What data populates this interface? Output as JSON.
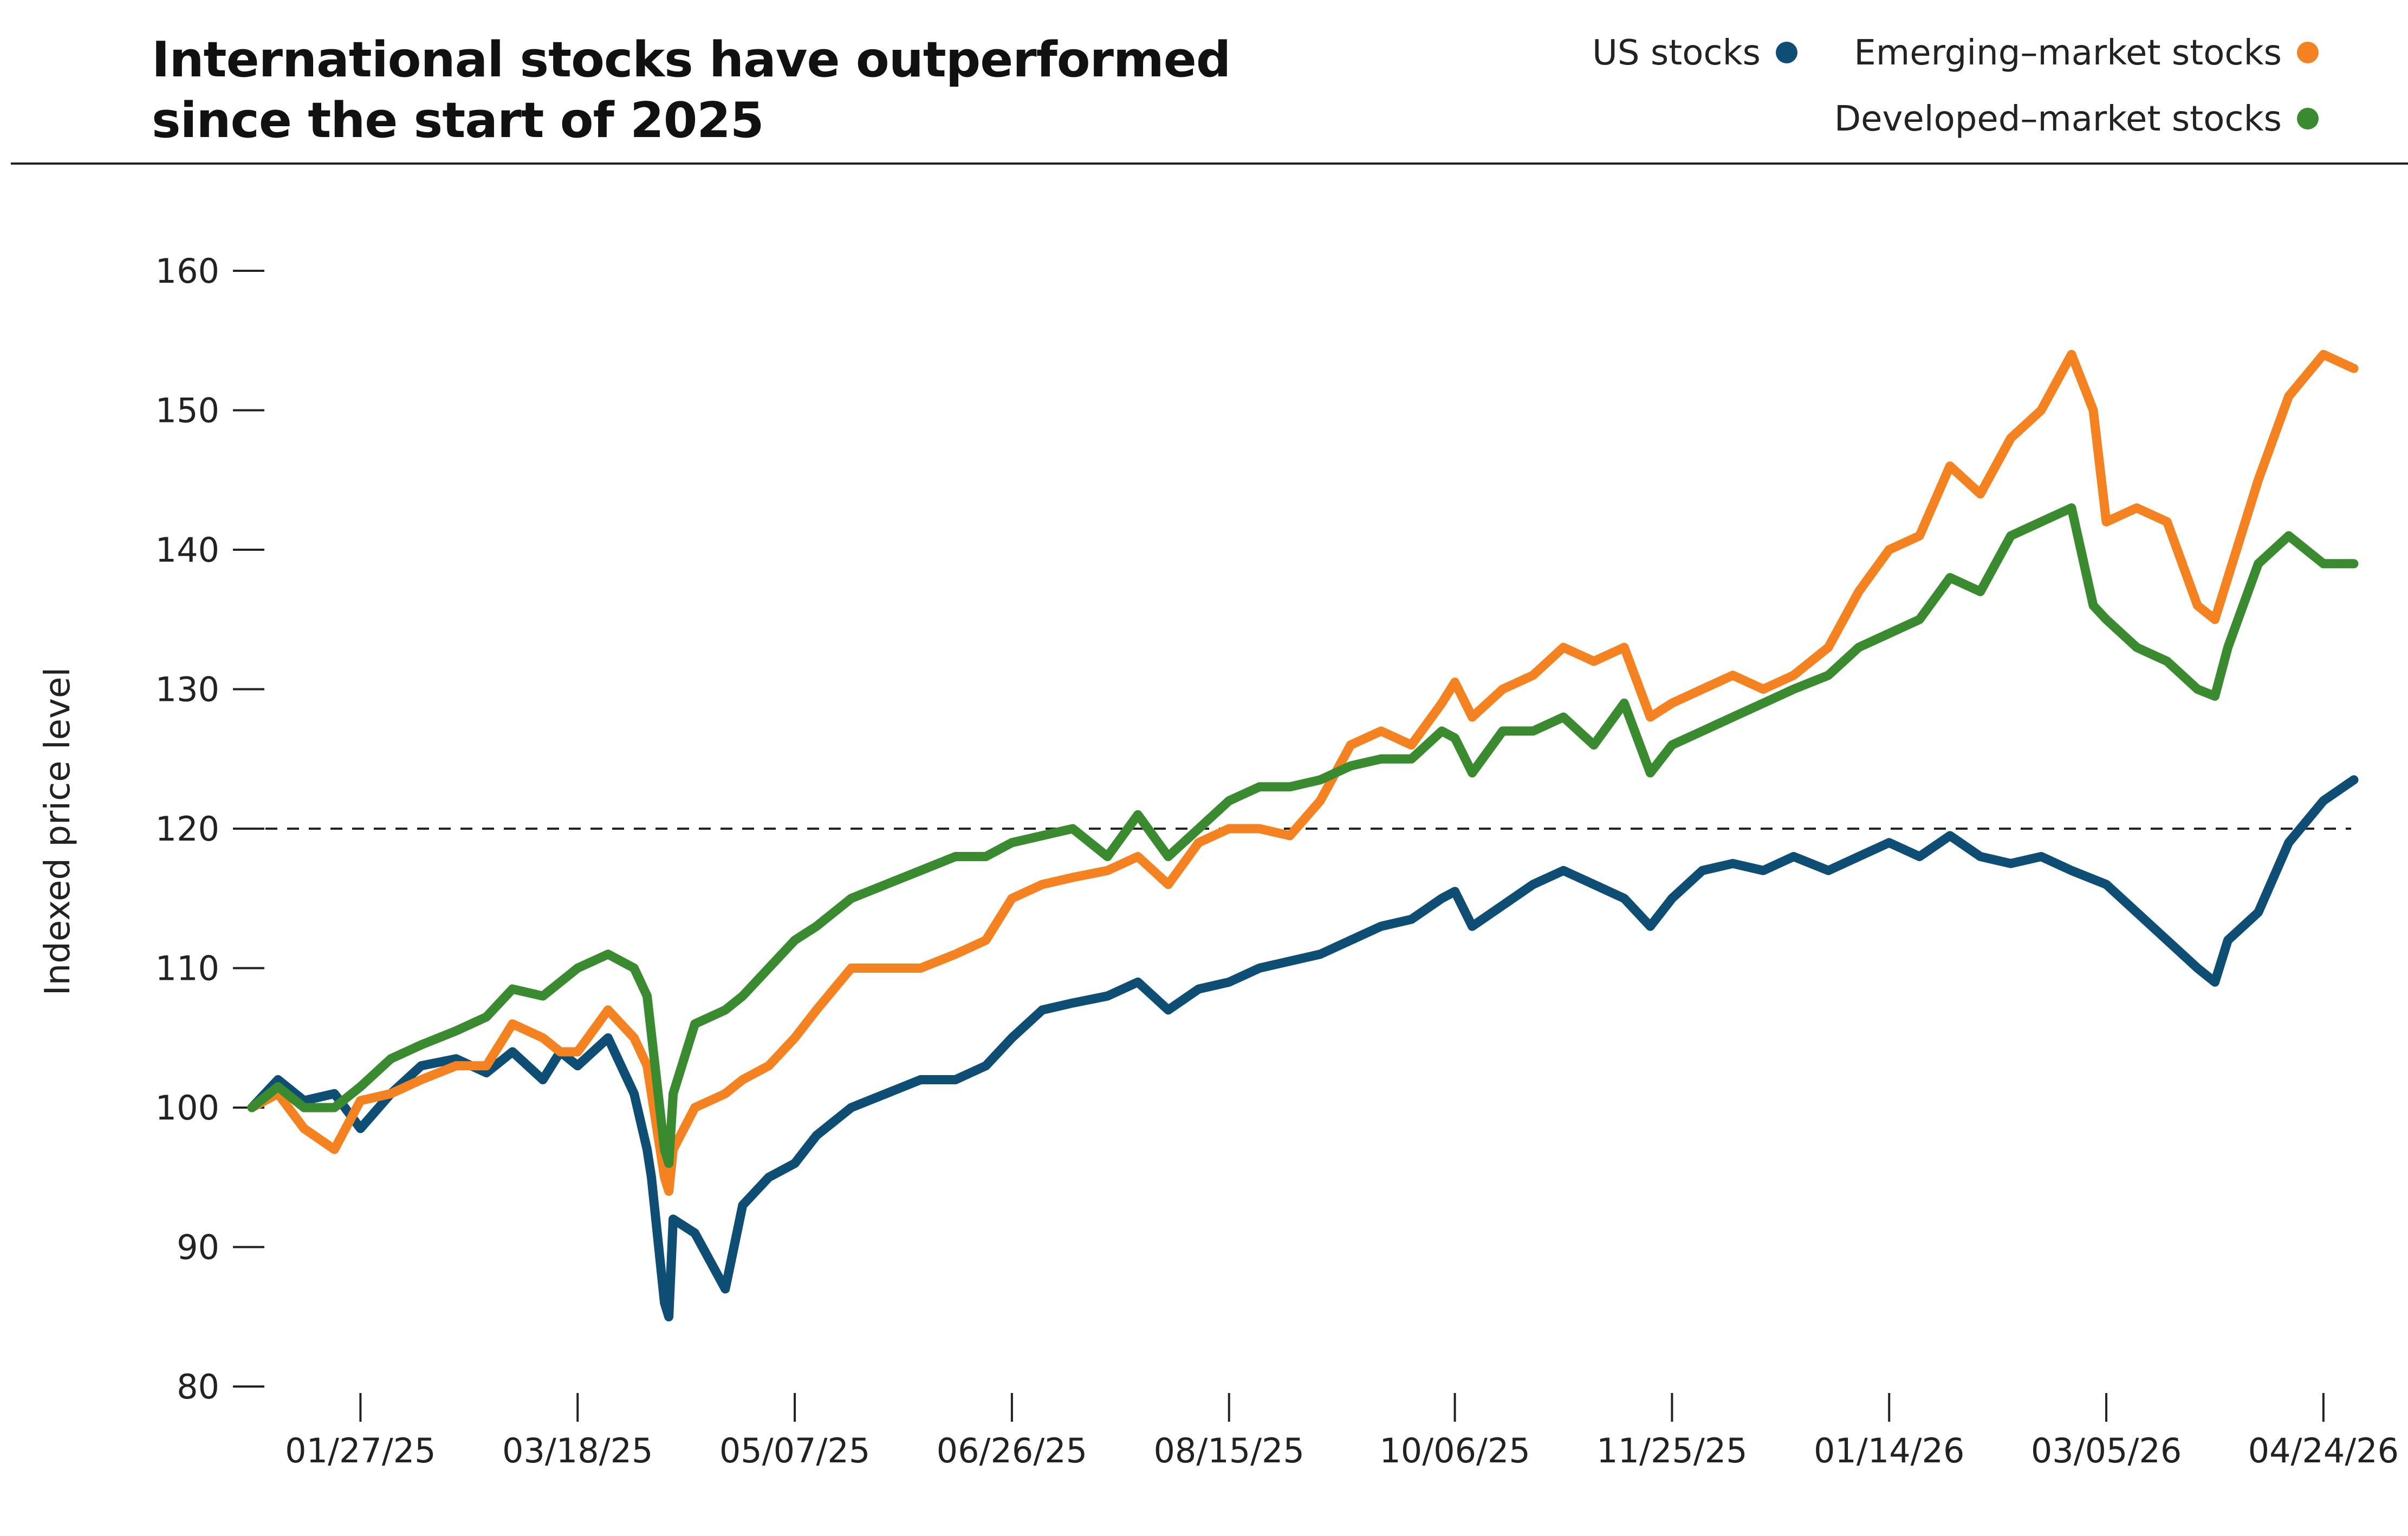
{
  "chart_data": {
    "type": "line",
    "title_lines": [
      "International stocks have outperformed",
      "since the start of 2025"
    ],
    "ylabel": "Indexed price level",
    "xlabel": "",
    "ylim": [
      80,
      160
    ],
    "yticks": [
      80,
      90,
      100,
      110,
      120,
      130,
      140,
      150,
      160
    ],
    "x_start": "01/02/25",
    "x_end": "05/01/26",
    "xticks": [
      "01/27/25",
      "03/18/25",
      "05/07/25",
      "06/26/25",
      "08/15/25",
      "10/06/25",
      "11/25/25",
      "01/14/26",
      "03/05/26",
      "04/24/26"
    ],
    "reference_line": {
      "y": 120,
      "style": "dashed"
    },
    "legend_position": "top-right",
    "series": [
      {
        "name": "US stocks",
        "color": "#0e4e74",
        "points": [
          [
            "01/02/25",
            100
          ],
          [
            "01/08/25",
            102
          ],
          [
            "01/14/25",
            100.5
          ],
          [
            "01/21/25",
            101
          ],
          [
            "01/27/25",
            98.5
          ],
          [
            "02/03/25",
            101
          ],
          [
            "02/10/25",
            103
          ],
          [
            "02/18/25",
            103.5
          ],
          [
            "02/25/25",
            102.5
          ],
          [
            "03/03/25",
            104
          ],
          [
            "03/10/25",
            102
          ],
          [
            "03/14/25",
            104
          ],
          [
            "03/18/25",
            103
          ],
          [
            "03/25/25",
            105
          ],
          [
            "03/31/25",
            101
          ],
          [
            "04/03/25",
            97
          ],
          [
            "04/04/25",
            95
          ],
          [
            "04/07/25",
            86
          ],
          [
            "04/08/25",
            85
          ],
          [
            "04/09/25",
            92
          ],
          [
            "04/14/25",
            91
          ],
          [
            "04/21/25",
            87
          ],
          [
            "04/25/25",
            93
          ],
          [
            "05/01/25",
            95
          ],
          [
            "05/07/25",
            96
          ],
          [
            "05/12/25",
            98
          ],
          [
            "05/20/25",
            100
          ],
          [
            "05/28/25",
            101
          ],
          [
            "06/05/25",
            102
          ],
          [
            "06/13/25",
            102
          ],
          [
            "06/20/25",
            103
          ],
          [
            "06/26/25",
            105
          ],
          [
            "07/03/25",
            107
          ],
          [
            "07/10/25",
            107.5
          ],
          [
            "07/18/25",
            108
          ],
          [
            "07/25/25",
            109
          ],
          [
            "08/01/25",
            107
          ],
          [
            "08/08/25",
            108.5
          ],
          [
            "08/15/25",
            109
          ],
          [
            "08/22/25",
            110
          ],
          [
            "08/29/25",
            110.5
          ],
          [
            "09/05/25",
            111
          ],
          [
            "09/12/25",
            112
          ],
          [
            "09/19/25",
            113
          ],
          [
            "09/26/25",
            113.5
          ],
          [
            "10/03/25",
            115
          ],
          [
            "10/06/25",
            115.5
          ],
          [
            "10/10/25",
            113
          ],
          [
            "10/17/25",
            114.5
          ],
          [
            "10/24/25",
            116
          ],
          [
            "10/31/25",
            117
          ],
          [
            "11/07/25",
            116
          ],
          [
            "11/14/25",
            115
          ],
          [
            "11/20/25",
            113
          ],
          [
            "11/25/25",
            115
          ],
          [
            "12/02/25",
            117
          ],
          [
            "12/09/25",
            117.5
          ],
          [
            "12/16/25",
            117
          ],
          [
            "12/23/25",
            118
          ],
          [
            "12/31/25",
            117
          ],
          [
            "01/07/26",
            118
          ],
          [
            "01/14/26",
            119
          ],
          [
            "01/21/26",
            118
          ],
          [
            "01/28/26",
            119.5
          ],
          [
            "02/04/26",
            118
          ],
          [
            "02/11/26",
            117.5
          ],
          [
            "02/18/26",
            118
          ],
          [
            "02/25/26",
            117
          ],
          [
            "03/05/26",
            116
          ],
          [
            "03/12/26",
            114
          ],
          [
            "03/19/26",
            112
          ],
          [
            "03/26/26",
            110
          ],
          [
            "03/30/26",
            109
          ],
          [
            "04/02/26",
            112
          ],
          [
            "04/09/26",
            114
          ],
          [
            "04/16/26",
            119
          ],
          [
            "04/24/26",
            122
          ],
          [
            "05/01/26",
            123.5
          ]
        ]
      },
      {
        "name": "Emerging–market stocks",
        "color": "#f58220",
        "points": [
          [
            "01/02/25",
            100
          ],
          [
            "01/08/25",
            101
          ],
          [
            "01/14/25",
            98.5
          ],
          [
            "01/21/25",
            97
          ],
          [
            "01/27/25",
            100.5
          ],
          [
            "02/03/25",
            101
          ],
          [
            "02/10/25",
            102
          ],
          [
            "02/18/25",
            103
          ],
          [
            "02/25/25",
            103
          ],
          [
            "03/03/25",
            106
          ],
          [
            "03/10/25",
            105
          ],
          [
            "03/14/25",
            104
          ],
          [
            "03/18/25",
            104
          ],
          [
            "03/25/25",
            107
          ],
          [
            "03/31/25",
            105
          ],
          [
            "04/03/25",
            103
          ],
          [
            "04/07/25",
            95
          ],
          [
            "04/08/25",
            94
          ],
          [
            "04/09/25",
            97
          ],
          [
            "04/14/25",
            100
          ],
          [
            "04/21/25",
            101
          ],
          [
            "04/25/25",
            102
          ],
          [
            "05/01/25",
            103
          ],
          [
            "05/07/25",
            105
          ],
          [
            "05/12/25",
            107
          ],
          [
            "05/20/25",
            110
          ],
          [
            "05/28/25",
            110
          ],
          [
            "06/05/25",
            110
          ],
          [
            "06/13/25",
            111
          ],
          [
            "06/20/25",
            112
          ],
          [
            "06/26/25",
            115
          ],
          [
            "07/03/25",
            116
          ],
          [
            "07/10/25",
            116.5
          ],
          [
            "07/18/25",
            117
          ],
          [
            "07/25/25",
            118
          ],
          [
            "08/01/25",
            116
          ],
          [
            "08/08/25",
            119
          ],
          [
            "08/15/25",
            120
          ],
          [
            "08/22/25",
            120
          ],
          [
            "08/29/25",
            119.5
          ],
          [
            "09/05/25",
            122
          ],
          [
            "09/12/25",
            126
          ],
          [
            "09/19/25",
            127
          ],
          [
            "09/26/25",
            126
          ],
          [
            "10/03/25",
            129
          ],
          [
            "10/06/25",
            130.5
          ],
          [
            "10/10/25",
            128
          ],
          [
            "10/17/25",
            130
          ],
          [
            "10/24/25",
            131
          ],
          [
            "10/31/25",
            133
          ],
          [
            "11/07/25",
            132
          ],
          [
            "11/14/25",
            133
          ],
          [
            "11/20/25",
            128
          ],
          [
            "11/25/25",
            129
          ],
          [
            "12/02/25",
            130
          ],
          [
            "12/09/25",
            131
          ],
          [
            "12/16/25",
            130
          ],
          [
            "12/23/25",
            131
          ],
          [
            "12/31/25",
            133
          ],
          [
            "01/07/26",
            137
          ],
          [
            "01/14/26",
            140
          ],
          [
            "01/21/26",
            141
          ],
          [
            "01/28/26",
            146
          ],
          [
            "02/04/26",
            144
          ],
          [
            "02/11/26",
            148
          ],
          [
            "02/18/26",
            150
          ],
          [
            "02/25/26",
            154
          ],
          [
            "03/02/26",
            150
          ],
          [
            "03/05/26",
            142
          ],
          [
            "03/12/26",
            143
          ],
          [
            "03/19/26",
            142
          ],
          [
            "03/26/26",
            136
          ],
          [
            "03/30/26",
            135
          ],
          [
            "04/02/26",
            138
          ],
          [
            "04/09/26",
            145
          ],
          [
            "04/16/26",
            151
          ],
          [
            "04/24/26",
            154
          ],
          [
            "05/01/26",
            153
          ]
        ]
      },
      {
        "name": "Developed–market stocks",
        "color": "#3a8b2f",
        "points": [
          [
            "01/02/25",
            100
          ],
          [
            "01/08/25",
            101.5
          ],
          [
            "01/14/25",
            100
          ],
          [
            "01/21/25",
            100
          ],
          [
            "01/27/25",
            101.5
          ],
          [
            "02/03/25",
            103.5
          ],
          [
            "02/10/25",
            104.5
          ],
          [
            "02/18/25",
            105.5
          ],
          [
            "02/25/25",
            106.5
          ],
          [
            "03/03/25",
            108.5
          ],
          [
            "03/10/25",
            108
          ],
          [
            "03/14/25",
            109
          ],
          [
            "03/18/25",
            110
          ],
          [
            "03/25/25",
            111
          ],
          [
            "03/31/25",
            110
          ],
          [
            "04/03/25",
            108
          ],
          [
            "04/07/25",
            97
          ],
          [
            "04/08/25",
            96
          ],
          [
            "04/09/25",
            101
          ],
          [
            "04/14/25",
            106
          ],
          [
            "04/21/25",
            107
          ],
          [
            "04/25/25",
            108
          ],
          [
            "05/01/25",
            110
          ],
          [
            "05/07/25",
            112
          ],
          [
            "05/12/25",
            113
          ],
          [
            "05/20/25",
            115
          ],
          [
            "05/28/25",
            116
          ],
          [
            "06/05/25",
            117
          ],
          [
            "06/13/25",
            118
          ],
          [
            "06/20/25",
            118
          ],
          [
            "06/26/25",
            119
          ],
          [
            "07/03/25",
            119.5
          ],
          [
            "07/10/25",
            120
          ],
          [
            "07/18/25",
            118
          ],
          [
            "07/25/25",
            121
          ],
          [
            "08/01/25",
            118
          ],
          [
            "08/08/25",
            120
          ],
          [
            "08/15/25",
            122
          ],
          [
            "08/22/25",
            123
          ],
          [
            "08/29/25",
            123
          ],
          [
            "09/05/25",
            123.5
          ],
          [
            "09/12/25",
            124.5
          ],
          [
            "09/19/25",
            125
          ],
          [
            "09/26/25",
            125
          ],
          [
            "10/03/25",
            127
          ],
          [
            "10/06/25",
            126.5
          ],
          [
            "10/10/25",
            124
          ],
          [
            "10/17/25",
            127
          ],
          [
            "10/24/25",
            127
          ],
          [
            "10/31/25",
            128
          ],
          [
            "11/07/25",
            126
          ],
          [
            "11/14/25",
            129
          ],
          [
            "11/20/25",
            124
          ],
          [
            "11/25/25",
            126
          ],
          [
            "12/02/25",
            127
          ],
          [
            "12/09/25",
            128
          ],
          [
            "12/16/25",
            129
          ],
          [
            "12/23/25",
            130
          ],
          [
            "12/31/25",
            131
          ],
          [
            "01/07/26",
            133
          ],
          [
            "01/14/26",
            134
          ],
          [
            "01/21/26",
            135
          ],
          [
            "01/28/26",
            138
          ],
          [
            "02/04/26",
            137
          ],
          [
            "02/11/26",
            141
          ],
          [
            "02/18/26",
            142
          ],
          [
            "02/25/26",
            143
          ],
          [
            "03/02/26",
            136
          ],
          [
            "03/05/26",
            135
          ],
          [
            "03/12/26",
            133
          ],
          [
            "03/19/26",
            132
          ],
          [
            "03/26/26",
            130
          ],
          [
            "03/30/26",
            129.5
          ],
          [
            "04/02/26",
            133
          ],
          [
            "04/09/26",
            139
          ],
          [
            "04/16/26",
            141
          ],
          [
            "04/24/26",
            139
          ],
          [
            "05/01/26",
            139
          ]
        ]
      }
    ]
  }
}
